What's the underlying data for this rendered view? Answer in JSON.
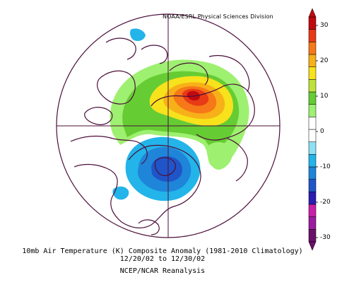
{
  "credit": "NOAA/ESRL Physical Sciences Division",
  "caption": {
    "line1": "10mb Air Temperature (K) Composite Anomaly (1981-2010 Climatology)",
    "line2": "12/20/02 to 12/30/02",
    "line3": "NCEP/NCAR Reanalysis"
  },
  "colorbar": {
    "labels": [
      "30",
      "20",
      "10",
      "0",
      "-10",
      "-20",
      "-30"
    ],
    "colors": [
      "#6a0f6a",
      "#9c1aa0",
      "#c81ea8",
      "#2a1cb4",
      "#1f55c8",
      "#1f85d8",
      "#23b4ea",
      "#8ee0f4",
      "#ffffff",
      "#ffffff",
      "#9ef070",
      "#66cc33",
      "#bfe23a",
      "#f7e21c",
      "#f8b018",
      "#f67818",
      "#e83a16",
      "#c00a10"
    ]
  },
  "map": {
    "projection": "north polar stereographic",
    "warm_anomaly_region": "Northern Eurasia / Arctic",
    "warm_anomaly_max": "30",
    "cold_anomaly_region": "North America (Great Lakes)",
    "cold_anomaly_min": "-15"
  }
}
